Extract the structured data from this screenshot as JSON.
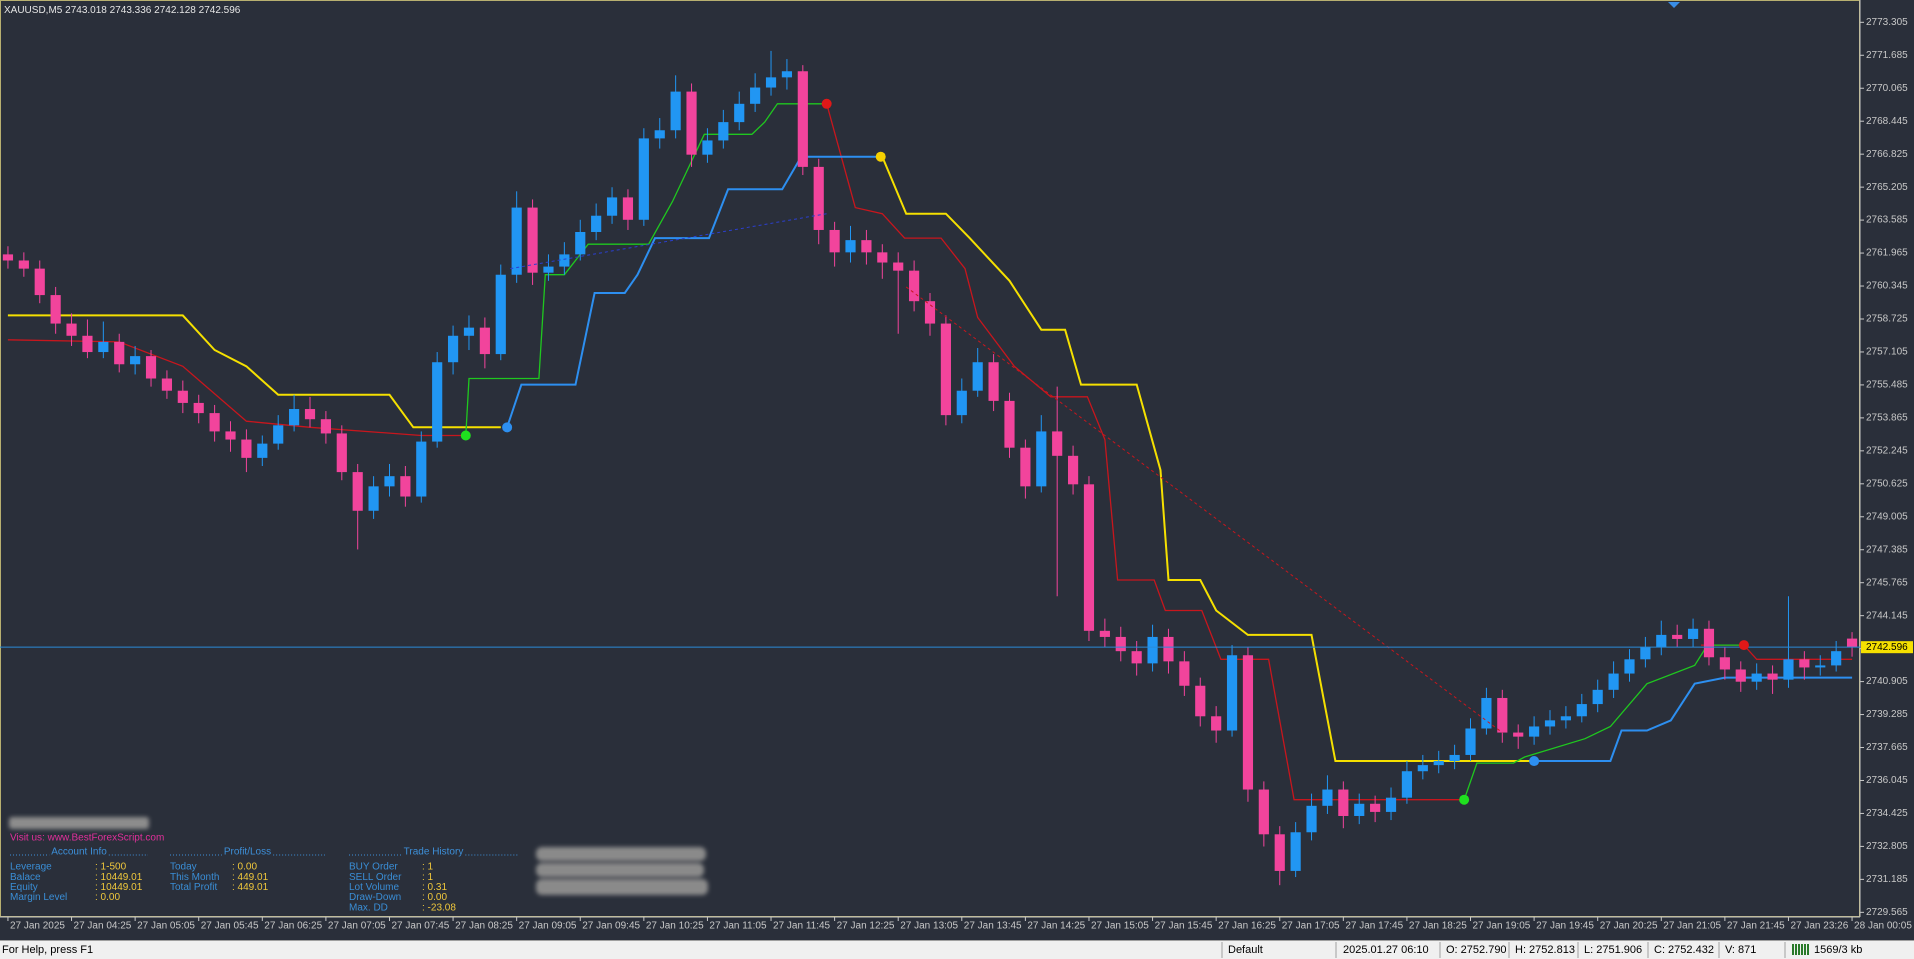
{
  "header": {
    "symbol": "XAUUSD,M5"
  },
  "chart_data": {
    "type": "candlestick",
    "up_color": "#2196f3",
    "down_color": "#f2449c",
    "open": [
      2761.9,
      2761.6,
      2761.2,
      2759.9,
      2758.5,
      2757.9,
      2757.1,
      2757.6,
      2756.5,
      2756.9,
      2755.8,
      2755.2,
      2754.6,
      2754.1,
      2753.2,
      2752.8,
      2751.9,
      2752.6,
      2753.5,
      2754.3,
      2753.8,
      2753.1,
      2751.2,
      2749.3,
      2750.5,
      2751.0,
      2750.0,
      2752.7,
      2756.6,
      2757.9,
      2758.3,
      2757.0,
      2760.9,
      2764.2,
      2761.0,
      2761.3,
      2761.9,
      2763.0,
      2763.8,
      2764.7,
      2763.6,
      2767.6,
      2768.0,
      2769.9,
      2766.8,
      2767.5,
      2768.4,
      2769.3,
      2770.1,
      2770.6,
      2770.9,
      2766.2,
      2763.1,
      2762.0,
      2762.6,
      2762.0,
      2761.5,
      2761.1,
      2759.6,
      2758.5,
      2754.0,
      2755.2,
      2756.6,
      2754.7,
      2752.4,
      2750.5,
      2753.2,
      2752.0,
      2750.6,
      2743.4,
      2743.1,
      2742.4,
      2741.8,
      2743.1,
      2741.9,
      2740.7,
      2739.2,
      2738.5,
      2742.2,
      2735.6,
      2733.4,
      2731.6,
      2733.5,
      2734.8,
      2735.6,
      2734.3,
      2734.9,
      2734.5,
      2735.2,
      2736.5,
      2736.8,
      2737.0,
      2737.3,
      2738.6,
      2740.1,
      2738.4,
      2738.2,
      2738.7,
      2739.0,
      2739.2,
      2739.8,
      2740.5,
      2741.3,
      2742.0,
      2742.6,
      2743.2,
      2743.0,
      2743.5,
      2742.1,
      2741.5,
      2740.9,
      2741.3,
      2741.0,
      2742.0,
      2741.6,
      2741.7,
      2743.018
    ],
    "high": [
      2762.3,
      2762.0,
      2761.6,
      2760.3,
      2759.0,
      2758.7,
      2758.6,
      2758.0,
      2757.4,
      2757.2,
      2756.2,
      2755.7,
      2755.0,
      2754.5,
      2753.7,
      2753.3,
      2753.0,
      2754.0,
      2755.0,
      2754.9,
      2754.2,
      2753.5,
      2751.6,
      2751.0,
      2751.6,
      2751.5,
      2753.2,
      2757.1,
      2758.4,
      2758.9,
      2758.8,
      2761.4,
      2765.0,
      2764.6,
      2761.9,
      2762.5,
      2763.6,
      2764.4,
      2765.2,
      2765.1,
      2768.1,
      2768.6,
      2770.7,
      2770.3,
      2768.1,
      2769.0,
      2769.9,
      2770.8,
      2771.9,
      2771.5,
      2771.2,
      2766.6,
      2763.5,
      2763.3,
      2763.1,
      2762.4,
      2762.0,
      2761.6,
      2760.0,
      2758.9,
      2755.8,
      2757.3,
      2757.0,
      2755.1,
      2752.8,
      2754.0,
      2755.4,
      2752.5,
      2751.0,
      2744.0,
      2743.6,
      2742.9,
      2743.7,
      2743.5,
      2742.4,
      2741.1,
      2739.7,
      2742.7,
      2742.6,
      2736.0,
      2733.8,
      2734.0,
      2735.4,
      2736.3,
      2736.0,
      2735.4,
      2735.3,
      2735.7,
      2737.0,
      2737.3,
      2737.5,
      2737.8,
      2739.1,
      2740.6,
      2740.5,
      2738.8,
      2739.2,
      2739.5,
      2739.7,
      2740.3,
      2741.0,
      2741.9,
      2742.5,
      2743.1,
      2743.9,
      2743.7,
      2744.0,
      2743.9,
      2742.6,
      2741.9,
      2741.8,
      2741.7,
      2745.1,
      2742.4,
      2742.2,
      2742.9,
      2743.336
    ],
    "low": [
      2761.2,
      2760.8,
      2759.5,
      2758.0,
      2757.4,
      2756.8,
      2756.8,
      2756.1,
      2756.0,
      2755.4,
      2754.8,
      2754.1,
      2753.6,
      2752.7,
      2752.2,
      2751.2,
      2751.5,
      2752.3,
      2753.2,
      2753.4,
      2752.6,
      2750.8,
      2747.4,
      2748.9,
      2750.0,
      2749.5,
      2749.7,
      2752.4,
      2756.0,
      2757.2,
      2756.3,
      2756.7,
      2760.5,
      2760.4,
      2760.6,
      2760.9,
      2761.6,
      2762.6,
      2763.4,
      2763.1,
      2763.3,
      2767.1,
      2767.6,
      2766.2,
      2766.4,
      2767.1,
      2768.0,
      2768.9,
      2769.7,
      2770.0,
      2765.8,
      2762.4,
      2761.3,
      2761.5,
      2761.4,
      2760.7,
      2758.0,
      2759.1,
      2757.9,
      2753.5,
      2753.6,
      2754.9,
      2754.2,
      2751.9,
      2749.9,
      2750.2,
      2745.1,
      2750.1,
      2742.9,
      2742.6,
      2741.9,
      2741.2,
      2741.4,
      2741.3,
      2740.2,
      2738.7,
      2737.9,
      2738.2,
      2735.0,
      2732.8,
      2730.9,
      2731.3,
      2733.1,
      2734.4,
      2733.7,
      2733.9,
      2734.0,
      2734.1,
      2734.9,
      2736.1,
      2736.4,
      2736.6,
      2737.0,
      2738.3,
      2737.9,
      2737.6,
      2737.8,
      2738.3,
      2738.6,
      2738.9,
      2739.4,
      2740.1,
      2740.9,
      2741.6,
      2742.2,
      2742.6,
      2742.6,
      2741.7,
      2741.0,
      2740.4,
      2740.5,
      2740.3,
      2740.6,
      2741.0,
      2741.2,
      2741.4,
      2742.128
    ],
    "close": [
      2761.6,
      2761.2,
      2759.9,
      2758.5,
      2757.9,
      2757.1,
      2757.6,
      2756.5,
      2756.9,
      2755.8,
      2755.2,
      2754.6,
      2754.1,
      2753.2,
      2752.8,
      2751.9,
      2752.6,
      2753.5,
      2754.3,
      2753.8,
      2753.1,
      2751.2,
      2749.3,
      2750.5,
      2751.0,
      2750.0,
      2752.7,
      2756.6,
      2757.9,
      2758.3,
      2757.0,
      2760.9,
      2764.2,
      2761.0,
      2761.3,
      2761.9,
      2763.0,
      2763.8,
      2764.7,
      2763.6,
      2767.6,
      2768.0,
      2769.9,
      2766.8,
      2767.5,
      2768.4,
      2769.3,
      2770.1,
      2770.6,
      2770.9,
      2766.2,
      2763.1,
      2762.0,
      2762.6,
      2762.0,
      2761.5,
      2761.1,
      2759.6,
      2758.5,
      2754.0,
      2755.2,
      2756.6,
      2754.7,
      2752.4,
      2750.5,
      2753.2,
      2752.0,
      2750.6,
      2743.4,
      2743.1,
      2742.4,
      2741.8,
      2743.1,
      2741.9,
      2740.7,
      2739.2,
      2738.5,
      2742.2,
      2735.6,
      2733.4,
      2731.6,
      2733.5,
      2734.8,
      2735.6,
      2734.3,
      2734.9,
      2734.5,
      2735.2,
      2736.5,
      2736.8,
      2737.0,
      2737.3,
      2738.6,
      2740.1,
      2738.4,
      2738.2,
      2738.7,
      2739.0,
      2739.2,
      2739.8,
      2740.5,
      2741.3,
      2742.0,
      2742.6,
      2743.2,
      2743.0,
      2743.5,
      2742.1,
      2741.5,
      2740.9,
      2741.3,
      2741.0,
      2742.0,
      2741.6,
      2741.7,
      2742.4,
      2742.596
    ],
    "xlim": [
      -0.5,
      116.5
    ],
    "xticks": [
      {
        "value": 0,
        "label": "27 Jan 2025"
      },
      {
        "value": 4,
        "label": "27 Jan 04:25"
      },
      {
        "value": 8,
        "label": "27 Jan 05:05"
      },
      {
        "value": 12,
        "label": "27 Jan 05:45"
      },
      {
        "value": 16,
        "label": "27 Jan 06:25"
      },
      {
        "value": 20,
        "label": "27 Jan 07:05"
      },
      {
        "value": 24,
        "label": "27 Jan 07:45"
      },
      {
        "value": 28,
        "label": "27 Jan 08:25"
      },
      {
        "value": 32,
        "label": "27 Jan 09:05"
      },
      {
        "value": 36,
        "label": "27 Jan 09:45"
      },
      {
        "value": 40,
        "label": "27 Jan 10:25"
      },
      {
        "value": 44,
        "label": "27 Jan 11:05"
      },
      {
        "value": 48,
        "label": "27 Jan 11:45"
      },
      {
        "value": 52,
        "label": "27 Jan 12:25"
      },
      {
        "value": 56,
        "label": "27 Jan 13:05"
      },
      {
        "value": 60,
        "label": "27 Jan 13:45"
      },
      {
        "value": 64,
        "label": "27 Jan 14:25"
      },
      {
        "value": 68,
        "label": "27 Jan 15:05"
      },
      {
        "value": 72,
        "label": "27 Jan 15:45"
      },
      {
        "value": 76,
        "label": "27 Jan 16:25"
      },
      {
        "value": 80,
        "label": "27 Jan 17:05"
      },
      {
        "value": 84,
        "label": "27 Jan 17:45"
      },
      {
        "value": 88,
        "label": "27 Jan 18:25"
      },
      {
        "value": 92,
        "label": "27 Jan 19:05"
      },
      {
        "value": 96,
        "label": "27 Jan 19:45"
      },
      {
        "value": 100,
        "label": "27 Jan 20:25"
      },
      {
        "value": 104,
        "label": "27 Jan 21:05"
      },
      {
        "value": 108,
        "label": "27 Jan 21:45"
      },
      {
        "value": 112,
        "label": "27 Jan 23:26"
      },
      {
        "value": 116,
        "label": "28 Jan 00:05"
      }
    ],
    "ylim": [
      2729.385,
      2774.205
    ],
    "yticks": [
      2773.305,
      2771.685,
      2770.065,
      2768.445,
      2766.825,
      2765.205,
      2763.585,
      2761.965,
      2760.345,
      2758.725,
      2757.105,
      2755.485,
      2753.865,
      2752.245,
      2750.625,
      2749.005,
      2747.385,
      2745.765,
      2744.145,
      2742.525,
      2740.905,
      2739.285,
      2737.665,
      2736.045,
      2734.425,
      2732.805,
      2731.185,
      2729.565
    ],
    "lines": [
      {
        "color": "#f5e000",
        "width": 2,
        "x": [
          0,
          11,
          13,
          15,
          17,
          24,
          25.5,
          31,
          null,
          55,
          56.5,
          59,
          60.5,
          63,
          65,
          66.5,
          67.5,
          71,
          72.5,
          73,
          75,
          76,
          78,
          82,
          83.5,
          96
        ],
        "values": [
          2758.9,
          2758.9,
          2757.2,
          2756.4,
          2755.0,
          2755.0,
          2753.4,
          2753.4,
          null,
          2766.7,
          2763.9,
          2763.9,
          2762.7,
          2760.6,
          2758.2,
          2758.2,
          2755.5,
          2755.5,
          2751.3,
          2745.9,
          2745.9,
          2744.4,
          2743.2,
          2743.2,
          2737.0,
          2737.0
        ]
      },
      {
        "color": "#c8161d",
        "width": 1.3,
        "x": [
          0,
          7,
          11,
          15,
          19,
          26,
          28.8,
          null,
          51.5,
          53.3,
          55,
          56.4,
          58.7,
          60.2,
          61,
          63.3,
          65.6,
          67.9,
          69,
          69.8,
          72.1,
          72.8,
          75.1,
          76.3,
          79.3,
          80.9,
          91.6,
          null,
          106.5,
          109.2,
          110,
          116
        ],
        "values": [
          2757.7,
          2757.6,
          2756.4,
          2753.7,
          2753.4,
          2753.0,
          2753.0,
          null,
          2769.3,
          2764.2,
          2763.9,
          2762.7,
          2762.7,
          2761.2,
          2758.8,
          2756.4,
          2754.9,
          2754.9,
          2752.8,
          2745.9,
          2745.9,
          2744.4,
          2744.4,
          2742.0,
          2742.0,
          2735.1,
          2735.1,
          null,
          2742.7,
          2742.7,
          2742.0,
          2742.0
        ]
      },
      {
        "color": "#1fc81f",
        "width": 1.3,
        "x": [
          28.8,
          29,
          33.4,
          33.8,
          35,
          36.5,
          40.3,
          41.8,
          43.8,
          46.8,
          47.6,
          48.4,
          51.5,
          null,
          91.6,
          92.4,
          94.7,
          95.4,
          99.2,
          100.8,
          103.1,
          106.1,
          106.9,
          109.2
        ],
        "values": [
          2753.0,
          2755.8,
          2755.8,
          2760.9,
          2760.9,
          2762.4,
          2762.4,
          2764.5,
          2767.8,
          2767.8,
          2768.4,
          2769.3,
          2769.3,
          null,
          2735.1,
          2736.9,
          2736.9,
          2737.2,
          2738.1,
          2738.7,
          2740.8,
          2741.7,
          2742.7,
          2742.7
        ]
      },
      {
        "color": "#2d8ff0",
        "width": 2,
        "x": [
          31.4,
          32.3,
          35.7,
          36.9,
          38.8,
          39.6,
          40.7,
          44.1,
          45.3,
          48.7,
          49.9,
          54.9,
          null,
          96,
          100.8,
          101.5,
          103.1,
          104.6,
          106.1,
          108,
          116
        ],
        "values": [
          2753.4,
          2755.5,
          2755.5,
          2760.0,
          2760.0,
          2760.9,
          2762.7,
          2762.7,
          2765.1,
          2765.1,
          2766.7,
          2766.7,
          null,
          2737.0,
          2737.0,
          2738.5,
          2738.5,
          2739.0,
          2740.8,
          2741.1,
          2741.1
        ]
      }
    ],
    "signals": {
      "x": [
        28.8,
        31.4,
        51.5,
        54.9,
        91.6,
        96,
        109.2
      ],
      "values": [
        2753.0,
        2753.4,
        2769.3,
        2766.7,
        2735.1,
        2737.0,
        2742.7
      ],
      "colors": [
        "#1fe01f",
        "#2d8ff0",
        "#e01818",
        "#f5d000",
        "#1fe01f",
        "#2d8ff0",
        "#e01818"
      ]
    },
    "trendlines": [
      {
        "color": "#2a3fd0",
        "x": [
          31.6,
          51.5
        ],
        "values": [
          2761.2,
          2763.9
        ]
      },
      {
        "color": "#c8161d",
        "x": [
          56.5,
          94
        ],
        "values": [
          2760.3,
          2738.4
        ]
      }
    ],
    "price_line_color": "#2a8bd8"
  },
  "panel": {
    "visit": "Visit us: www.BestForexScript.com",
    "account": {
      "title": "Account Info",
      "rows": [
        [
          "Leverage",
          ": 1-500"
        ],
        [
          "Balace",
          ": 10449.01"
        ],
        [
          "Equity",
          ": 10449.01"
        ],
        [
          "Margin Level",
          ": 0.00"
        ]
      ]
    },
    "profit": {
      "title": "Profit/Loss",
      "rows": [
        [
          "Today",
          ": 0.00"
        ],
        [
          "This Month",
          ": 449.01"
        ],
        [
          "Total Profit",
          ": 449.01"
        ]
      ]
    },
    "history": {
      "title": "Trade History",
      "rows": [
        [
          "BUY Order",
          ": 1"
        ],
        [
          "SELL Order",
          ": 1"
        ],
        [
          "Lot Volume",
          ": 0.31"
        ],
        [
          "Draw-Down",
          ": 0.00"
        ],
        [
          "Max. DD",
          ": -23.08"
        ]
      ]
    }
  },
  "status_bar": {
    "help": "For Help, press F1",
    "profile": "Default",
    "time": "2025.01.27 06:10",
    "open": "O: 2752.790",
    "high": "H: 2752.813",
    "low": "L: 2751.906",
    "close": "C: 2752.432",
    "volume": "V: 871",
    "traffic": "1569/3 kb"
  }
}
